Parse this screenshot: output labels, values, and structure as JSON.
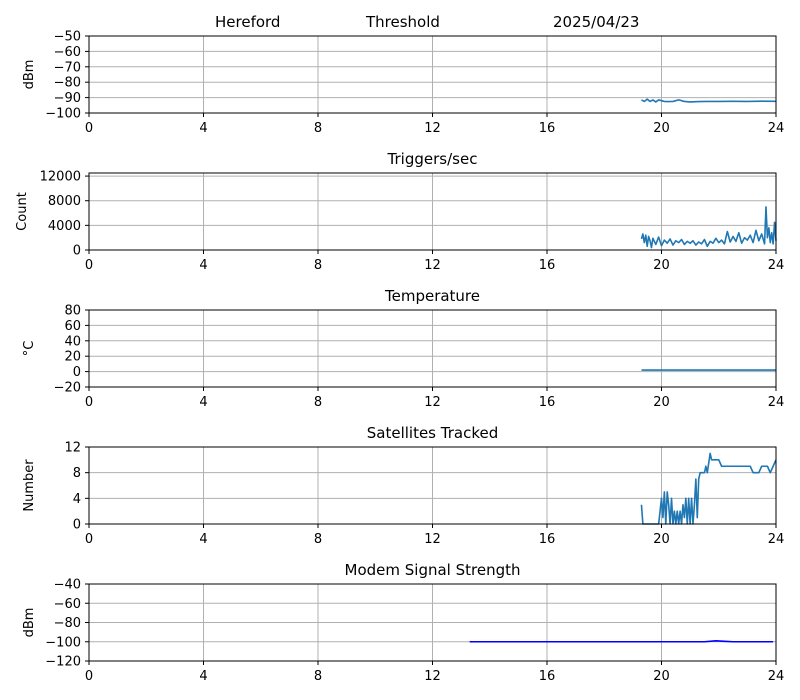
{
  "header": {
    "station": "Hereford",
    "mode": "Threshold",
    "date": "2025/04/23"
  },
  "colors": {
    "series_default": "#1f77b4",
    "series_modem": "#0000ff",
    "grid": "#b0b0b0",
    "axis": "#000000"
  },
  "chart_data": [
    {
      "type": "line",
      "title": "",
      "ylabel": "dBm",
      "xlim": [
        0,
        24
      ],
      "ylim": [
        -100,
        -50
      ],
      "xticks": [
        0,
        4,
        8,
        12,
        16,
        20,
        24
      ],
      "yticks": [
        -100,
        -90,
        -80,
        -70,
        -60,
        -50
      ],
      "ytick_labels": [
        "−100",
        "−90",
        "−80",
        "−70",
        "−60",
        "−50"
      ],
      "grid": true,
      "series": [
        {
          "color": "#1f77b4",
          "x": [
            19.3,
            19.4,
            19.5,
            19.6,
            19.7,
            19.8,
            19.9,
            20.0,
            20.1,
            20.2,
            20.4,
            20.6,
            20.8,
            21.0,
            21.3,
            21.6,
            22.0,
            22.5,
            23.0,
            23.5,
            24.0
          ],
          "y": [
            -91.5,
            -92.5,
            -91.0,
            -92.5,
            -91.5,
            -92.8,
            -91.5,
            -92.0,
            -92.5,
            -92.6,
            -92.5,
            -91.5,
            -92.5,
            -92.8,
            -92.6,
            -92.5,
            -92.5,
            -92.4,
            -92.5,
            -92.3,
            -92.4
          ]
        }
      ]
    },
    {
      "type": "line",
      "title": "Triggers/sec",
      "ylabel": "Count",
      "xlim": [
        0,
        24
      ],
      "ylim": [
        0,
        12500
      ],
      "xticks": [
        0,
        4,
        8,
        12,
        16,
        20,
        24
      ],
      "yticks": [
        0,
        4000,
        8000,
        12000
      ],
      "ytick_labels": [
        "0",
        "4000",
        "8000",
        "12000"
      ],
      "grid": true,
      "series": [
        {
          "color": "#1f77b4",
          "x": [
            19.3,
            19.35,
            19.4,
            19.45,
            19.5,
            19.55,
            19.6,
            19.65,
            19.7,
            19.8,
            19.9,
            20.0,
            20.1,
            20.2,
            20.3,
            20.4,
            20.5,
            20.6,
            20.7,
            20.8,
            20.9,
            21.0,
            21.1,
            21.2,
            21.3,
            21.4,
            21.5,
            21.6,
            21.7,
            21.8,
            21.9,
            22.0,
            22.1,
            22.2,
            22.3,
            22.4,
            22.5,
            22.6,
            22.7,
            22.8,
            22.9,
            23.0,
            23.1,
            23.2,
            23.3,
            23.4,
            23.5,
            23.6,
            23.65,
            23.7,
            23.75,
            23.8,
            23.85,
            23.9,
            23.95,
            24.0
          ],
          "y": [
            1800,
            2600,
            1200,
            2400,
            600,
            2200,
            1500,
            400,
            1900,
            900,
            2100,
            700,
            1600,
            1100,
            1800,
            800,
            1500,
            1200,
            1700,
            900,
            1400,
            1100,
            1500,
            800,
            1300,
            1000,
            1700,
            600,
            1400,
            1100,
            1900,
            1200,
            1600,
            1000,
            3000,
            1300,
            2200,
            1400,
            2800,
            1100,
            2000,
            1600,
            2400,
            1200,
            3200,
            1500,
            2600,
            1000,
            7000,
            2000,
            3600,
            1200,
            2800,
            1000,
            4500,
            1500
          ]
        }
      ]
    },
    {
      "type": "line",
      "title": "Temperature",
      "ylabel": "°C",
      "xlim": [
        0,
        24
      ],
      "ylim": [
        -20,
        80
      ],
      "xticks": [
        0,
        4,
        8,
        12,
        16,
        20,
        24
      ],
      "yticks": [
        -20,
        0,
        20,
        40,
        60,
        80
      ],
      "ytick_labels": [
        "−20",
        "0",
        "20",
        "40",
        "60",
        "80"
      ],
      "grid": true,
      "series": [
        {
          "color": "#1f77b4",
          "x": [
            19.3,
            24.0
          ],
          "y": [
            2,
            2
          ]
        }
      ]
    },
    {
      "type": "line",
      "title": "Satellites Tracked",
      "ylabel": "Number",
      "xlim": [
        0,
        24
      ],
      "ylim": [
        0,
        12
      ],
      "xticks": [
        0,
        4,
        8,
        12,
        16,
        20,
        24
      ],
      "yticks": [
        0,
        4,
        8,
        12
      ],
      "ytick_labels": [
        "0",
        "4",
        "8",
        "12"
      ],
      "grid": true,
      "series": [
        {
          "color": "#1f77b4",
          "x": [
            19.3,
            19.35,
            19.9,
            19.95,
            20.0,
            20.05,
            20.1,
            20.15,
            20.2,
            20.25,
            20.3,
            20.35,
            20.4,
            20.45,
            20.5,
            20.55,
            20.6,
            20.65,
            20.7,
            20.75,
            20.8,
            20.85,
            20.9,
            20.95,
            21.0,
            21.05,
            21.1,
            21.15,
            21.2,
            21.25,
            21.3,
            21.35,
            21.4,
            21.45,
            21.5,
            21.55,
            21.6,
            21.7,
            21.75,
            21.8,
            22.0,
            22.1,
            22.6,
            22.7,
            23.1,
            23.2,
            23.4,
            23.5,
            23.6,
            23.7,
            23.8,
            23.9,
            24.0
          ],
          "y": [
            3,
            0,
            0,
            2,
            4,
            1,
            5,
            0,
            5,
            3,
            0,
            4,
            0,
            2,
            0,
            2,
            0,
            2,
            0,
            3,
            1,
            4,
            0,
            4,
            0,
            4,
            0,
            3,
            7,
            1,
            7,
            8,
            8,
            8,
            8,
            9,
            8,
            11,
            10,
            10,
            10,
            9,
            9,
            9,
            9,
            8,
            8,
            9,
            9,
            9,
            8,
            9,
            10
          ]
        }
      ]
    },
    {
      "type": "line",
      "title": "Modem Signal Strength",
      "ylabel": "dBm",
      "xlim": [
        0,
        24
      ],
      "ylim": [
        -120,
        -40
      ],
      "xticks": [
        0,
        4,
        8,
        12,
        16,
        20,
        24
      ],
      "yticks": [
        -120,
        -100,
        -80,
        -60,
        -40
      ],
      "ytick_labels": [
        "−120",
        "−100",
        "−80",
        "−60",
        "−40"
      ],
      "grid": true,
      "series": [
        {
          "color": "#0000ff",
          "x": [
            13.3,
            14.0,
            16.0,
            18.0,
            20.0,
            21.0,
            21.5,
            21.9,
            22.2,
            22.5,
            23.0,
            23.5,
            23.9
          ],
          "y": [
            -100,
            -100,
            -100,
            -100,
            -100,
            -100,
            -100,
            -99,
            -99.5,
            -100,
            -100,
            -100,
            -100
          ]
        }
      ]
    }
  ]
}
